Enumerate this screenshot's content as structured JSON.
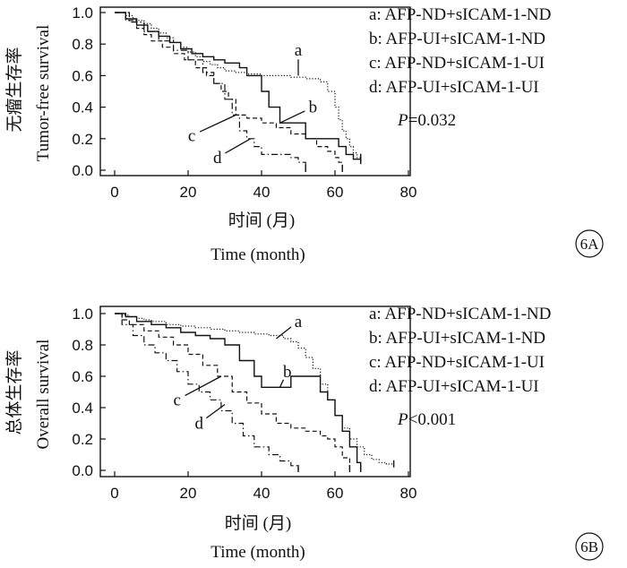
{
  "chart_data": [
    {
      "type": "line",
      "panel": "6A",
      "ylabel_cn": "无瘤生存率",
      "ylabel_en": "Tumor-free survival",
      "xlabel_cn": "时间 (月)",
      "xlabel_en": "Time (month)",
      "xlim": [
        0,
        80
      ],
      "ylim": [
        0,
        1.0
      ],
      "xticks": [
        "0",
        "20",
        "40",
        "60",
        "80"
      ],
      "yticks": [
        "0.0",
        "0.2",
        "0.4",
        "0.6",
        "0.8",
        "1.0"
      ],
      "legend": [
        "a: AFP-ND+sICAM-1-ND",
        "b: AFP-UI+sICAM-1-ND",
        "c: AFP-ND+sICAM-1-UI",
        "d: AFP-UI+sICAM-1-UI"
      ],
      "p_label": "P",
      "p_text": "=0.032",
      "series": [
        {
          "name": "a",
          "style": "dotted",
          "x": [
            0,
            3,
            5,
            8,
            10,
            12,
            14,
            16,
            18,
            20,
            22,
            24,
            26,
            28,
            30,
            33,
            36,
            40,
            44,
            48,
            52,
            56,
            58,
            60,
            61,
            62,
            63,
            64,
            65,
            66,
            67
          ],
          "y": [
            1.0,
            0.98,
            0.95,
            0.93,
            0.9,
            0.87,
            0.84,
            0.81,
            0.78,
            0.75,
            0.72,
            0.69,
            0.67,
            0.65,
            0.63,
            0.62,
            0.61,
            0.6,
            0.6,
            0.59,
            0.58,
            0.56,
            0.5,
            0.4,
            0.32,
            0.25,
            0.2,
            0.15,
            0.11,
            0.08,
            0.07
          ]
        },
        {
          "name": "b",
          "style": "solid",
          "x": [
            0,
            3,
            6,
            9,
            12,
            15,
            18,
            21,
            24,
            27,
            30,
            34,
            36,
            40,
            42,
            45,
            47,
            52,
            55,
            58,
            61,
            63,
            65,
            67
          ],
          "y": [
            1.0,
            0.96,
            0.92,
            0.88,
            0.85,
            0.81,
            0.77,
            0.74,
            0.72,
            0.7,
            0.68,
            0.65,
            0.6,
            0.5,
            0.4,
            0.3,
            0.3,
            0.2,
            0.2,
            0.2,
            0.15,
            0.1,
            0.07,
            0.05
          ]
        },
        {
          "name": "c",
          "style": "dashed",
          "x": [
            0,
            3,
            6,
            8,
            10,
            13,
            16,
            19,
            22,
            25,
            27,
            29,
            31,
            33,
            36,
            40,
            44,
            48,
            52,
            55,
            58,
            60,
            61,
            62
          ],
          "y": [
            1.0,
            0.95,
            0.9,
            0.86,
            0.82,
            0.78,
            0.74,
            0.7,
            0.65,
            0.6,
            0.55,
            0.5,
            0.45,
            0.35,
            0.33,
            0.3,
            0.27,
            0.23,
            0.2,
            0.15,
            0.12,
            0.08,
            0.05,
            0.0
          ]
        },
        {
          "name": "d",
          "style": "dash-dot",
          "x": [
            0,
            4,
            8,
            12,
            16,
            20,
            24,
            27,
            30,
            32,
            34,
            36,
            38,
            40,
            45,
            48,
            50,
            52
          ],
          "y": [
            1.0,
            0.94,
            0.88,
            0.82,
            0.76,
            0.7,
            0.62,
            0.55,
            0.45,
            0.35,
            0.25,
            0.2,
            0.15,
            0.1,
            0.1,
            0.08,
            0.05,
            0.0
          ]
        }
      ],
      "curve_labels": [
        {
          "text": "a",
          "at": [
            50,
            0.6
          ],
          "label": [
            50,
            0.76
          ]
        },
        {
          "text": "b",
          "at": [
            45,
            0.3
          ],
          "label": [
            54,
            0.4
          ]
        },
        {
          "text": "c",
          "at": [
            33,
            0.35
          ],
          "label": [
            21,
            0.22
          ]
        },
        {
          "text": "d",
          "at": [
            37,
            0.2
          ],
          "label": [
            28,
            0.08
          ]
        }
      ]
    },
    {
      "type": "line",
      "panel": "6B",
      "ylabel_cn": "总体生存率",
      "ylabel_en": "Overall survival",
      "xlabel_cn": "时间 (月)",
      "xlabel_en": "Time (month)",
      "xlim": [
        0,
        80
      ],
      "ylim": [
        0,
        1.0
      ],
      "xticks": [
        "0",
        "20",
        "40",
        "60",
        "80"
      ],
      "yticks": [
        "0.0",
        "0.2",
        "0.4",
        "0.6",
        "0.8",
        "1.0"
      ],
      "legend": [
        "a: AFP-ND+sICAM-1-ND",
        "b: AFP-UI+sICAM-1-ND",
        "c: AFP-ND+sICAM-1-UI",
        "d: AFP-UI+sICAM-1-UI"
      ],
      "p_label": "P",
      "p_text": "<0.001",
      "series": [
        {
          "name": "a",
          "style": "dotted",
          "x": [
            0,
            2,
            4,
            6,
            8,
            10,
            14,
            18,
            22,
            26,
            30,
            34,
            38,
            42,
            46,
            48,
            50,
            52,
            54,
            56,
            58,
            60,
            62,
            64,
            66,
            68,
            70,
            72,
            74,
            76
          ],
          "y": [
            1.0,
            0.99,
            0.98,
            0.97,
            0.96,
            0.95,
            0.93,
            0.92,
            0.91,
            0.9,
            0.89,
            0.88,
            0.87,
            0.86,
            0.84,
            0.82,
            0.78,
            0.72,
            0.65,
            0.55,
            0.45,
            0.35,
            0.27,
            0.2,
            0.15,
            0.1,
            0.07,
            0.05,
            0.04,
            0.03
          ]
        },
        {
          "name": "b",
          "style": "solid",
          "x": [
            0,
            3,
            6,
            10,
            14,
            18,
            22,
            26,
            30,
            34,
            38,
            40,
            44,
            48,
            52,
            56,
            58,
            60,
            62,
            64,
            66,
            67
          ],
          "y": [
            1.0,
            0.98,
            0.95,
            0.93,
            0.91,
            0.88,
            0.86,
            0.84,
            0.8,
            0.7,
            0.6,
            0.53,
            0.53,
            0.6,
            0.6,
            0.5,
            0.45,
            0.35,
            0.25,
            0.15,
            0.05,
            0.0
          ]
        },
        {
          "name": "c",
          "style": "dashed",
          "x": [
            0,
            2,
            4,
            8,
            12,
            16,
            20,
            24,
            28,
            32,
            36,
            40,
            44,
            48,
            52,
            56,
            58,
            60,
            62,
            64
          ],
          "y": [
            1.0,
            0.96,
            0.93,
            0.89,
            0.85,
            0.8,
            0.74,
            0.67,
            0.6,
            0.5,
            0.43,
            0.36,
            0.3,
            0.27,
            0.25,
            0.22,
            0.2,
            0.15,
            0.08,
            0.0
          ]
        },
        {
          "name": "d",
          "style": "dash-dot",
          "x": [
            0,
            2,
            5,
            8,
            11,
            14,
            17,
            20,
            23,
            26,
            29,
            32,
            35,
            38,
            42,
            45,
            48,
            50
          ],
          "y": [
            1.0,
            0.93,
            0.86,
            0.8,
            0.75,
            0.7,
            0.63,
            0.55,
            0.5,
            0.45,
            0.38,
            0.3,
            0.22,
            0.15,
            0.1,
            0.06,
            0.03,
            0.0
          ]
        }
      ],
      "curve_labels": [
        {
          "text": "a",
          "at": [
            44,
            0.84
          ],
          "label": [
            50,
            0.95
          ]
        },
        {
          "text": "b",
          "at": [
            45,
            0.53
          ],
          "label": [
            47,
            0.63
          ]
        },
        {
          "text": "c",
          "at": [
            29,
            0.6
          ],
          "label": [
            17,
            0.45
          ]
        },
        {
          "text": "d",
          "at": [
            30,
            0.42
          ],
          "label": [
            23,
            0.3
          ]
        }
      ]
    }
  ]
}
